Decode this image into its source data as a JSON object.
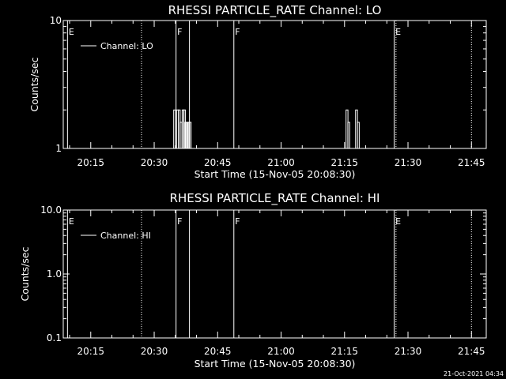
{
  "chart_data": [
    {
      "type": "line",
      "title": "RHESSI PARTICLE_RATE Channel: LO",
      "xlabel": "Start Time (15-Nov-05 20:08:30)",
      "ylabel": "Counts/sec",
      "yscale": "log",
      "xlim": [
        "20:08:30",
        "21:48:30"
      ],
      "ylim": [
        1,
        10
      ],
      "xticks": [
        "20:15",
        "20:30",
        "20:45",
        "21:00",
        "21:15",
        "21:30",
        "21:45"
      ],
      "yticks": [
        {
          "value": 1,
          "label": "1"
        },
        {
          "value": 10,
          "label": "10"
        }
      ],
      "legend": {
        "label": "Channel: LO",
        "placement": "top-left"
      },
      "series": [
        {
          "name": "Channel: LO",
          "color": "#ffffff",
          "spikes": [
            {
              "x": "20:34:50",
              "y": 2
            },
            {
              "x": "20:35:30",
              "y": 2
            },
            {
              "x": "20:35:55",
              "y": 2
            },
            {
              "x": "20:36:20",
              "y": 1.6
            },
            {
              "x": "20:36:50",
              "y": 2
            },
            {
              "x": "20:37:10",
              "y": 2
            },
            {
              "x": "20:37:30",
              "y": 1.6
            },
            {
              "x": "20:37:50",
              "y": 1.6
            },
            {
              "x": "20:38:10",
              "y": 1.6
            },
            {
              "x": "20:38:30",
              "y": 1.6
            },
            {
              "x": "21:15:35",
              "y": 2
            },
            {
              "x": "21:16:00",
              "y": 1.6
            },
            {
              "x": "21:17:50",
              "y": 2
            },
            {
              "x": "21:18:15",
              "y": 1.6
            }
          ]
        }
      ],
      "vertical_markers": [
        {
          "x": "20:09:30",
          "style": "solid",
          "label": "E"
        },
        {
          "x": "20:27:00",
          "style": "dotted",
          "label": ""
        },
        {
          "x": "20:35:10",
          "style": "solid",
          "label": "F"
        },
        {
          "x": "20:38:20",
          "style": "solid",
          "label": ""
        },
        {
          "x": "20:48:50",
          "style": "solid",
          "label": "F"
        },
        {
          "x": "21:26:45",
          "style": "solid",
          "label": "E"
        },
        {
          "x": "21:27:10",
          "style": "dotted",
          "label": ""
        },
        {
          "x": "21:45:00",
          "style": "dotted",
          "label": ""
        }
      ]
    },
    {
      "type": "line",
      "title": "RHESSI PARTICLE_RATE Channel: HI",
      "xlabel": "Start Time (15-Nov-05 20:08:30)",
      "ylabel": "Counts/sec",
      "yscale": "log",
      "xlim": [
        "20:08:30",
        "21:48:30"
      ],
      "ylim": [
        0.1,
        10
      ],
      "xticks": [
        "20:15",
        "20:30",
        "20:45",
        "21:00",
        "21:15",
        "21:30",
        "21:45"
      ],
      "yticks": [
        {
          "value": 0.1,
          "label": "0.1"
        },
        {
          "value": 1,
          "label": "1.0"
        },
        {
          "value": 10,
          "label": "10.0"
        }
      ],
      "legend": {
        "label": "Channel: HI",
        "placement": "top-left"
      },
      "series": [
        {
          "name": "Channel: HI",
          "color": "#ffffff",
          "spikes": []
        }
      ],
      "vertical_markers": [
        {
          "x": "20:09:30",
          "style": "solid",
          "label": "E"
        },
        {
          "x": "20:27:00",
          "style": "dotted",
          "label": ""
        },
        {
          "x": "20:35:10",
          "style": "solid",
          "label": "F"
        },
        {
          "x": "20:38:20",
          "style": "solid",
          "label": ""
        },
        {
          "x": "20:48:50",
          "style": "solid",
          "label": "F"
        },
        {
          "x": "21:26:45",
          "style": "solid",
          "label": "E"
        },
        {
          "x": "21:27:10",
          "style": "dotted",
          "label": ""
        },
        {
          "x": "21:45:00",
          "style": "dotted",
          "label": ""
        }
      ]
    }
  ],
  "footer": {
    "timestamp": "21-Oct-2021 04:34"
  }
}
